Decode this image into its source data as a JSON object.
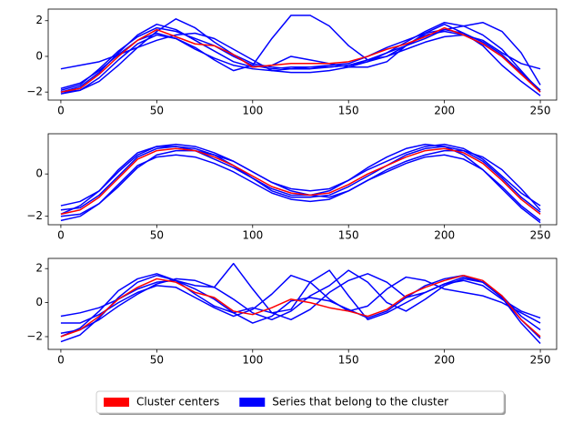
{
  "chart_data": [
    {
      "type": "line",
      "x": [
        0,
        10,
        20,
        30,
        40,
        50,
        60,
        70,
        80,
        90,
        100,
        110,
        120,
        130,
        140,
        150,
        160,
        170,
        180,
        190,
        200,
        210,
        220,
        230,
        240,
        250
      ],
      "xlim": [
        -6.6,
        258.5
      ],
      "xticks": [
        0,
        50,
        100,
        150,
        200,
        250
      ],
      "ylim": [
        -2.45,
        2.65
      ],
      "yticks": [
        {
          "value": -2,
          "label": "−2"
        },
        0,
        2
      ],
      "series": [
        {
          "color": "blue",
          "values": [
            -1.9,
            -1.6,
            -0.7,
            0.3,
            1.1,
            1.6,
            1.4,
            1,
            0.6,
            0,
            -0.5,
            -0.7,
            -0.6,
            -0.6,
            -0.5,
            -0.4,
            0,
            0.5,
            0.9,
            1.3,
            1.5,
            1.3,
            0.8,
            0.1,
            -0.9,
            -1.9
          ]
        },
        {
          "color": "blue",
          "values": [
            -2,
            -1.9,
            -1.4,
            -0.5,
            0.5,
            1.4,
            2.1,
            1.6,
            0.8,
            0.1,
            -0.4,
            -0.6,
            -0.7,
            -0.6,
            -0.6,
            -0.5,
            -0.3,
            0.2,
            0.8,
            1.4,
            1.9,
            1.7,
            1.2,
            0.4,
            -0.8,
            -2
          ]
        },
        {
          "color": "blue",
          "values": [
            -1.8,
            -1.5,
            -0.8,
            0.1,
            0.9,
            1.3,
            1,
            0.5,
            -0.2,
            -0.8,
            -0.5,
            1,
            2.3,
            2.3,
            1.7,
            0.6,
            -0.2,
            0,
            0.6,
            1.2,
            1.4,
            1.2,
            0.7,
            0,
            -1,
            -1.9
          ]
        },
        {
          "color": "blue",
          "values": [
            -0.7,
            -0.5,
            -0.3,
            0.1,
            0.5,
            0.9,
            1.2,
            1.3,
            1,
            0.4,
            -0.2,
            -0.8,
            -0.9,
            -0.9,
            -0.8,
            -0.6,
            -0.3,
            0,
            0.4,
            0.8,
            1.1,
            1.2,
            0.9,
            0.2,
            -0.4,
            -0.7
          ]
        },
        {
          "color": "blue",
          "values": [
            -2.1,
            -1.9,
            -1.2,
            -0.2,
            0.7,
            1.2,
            1,
            0.4,
            -0.1,
            -0.5,
            -0.7,
            -0.8,
            -0.7,
            -0.7,
            -0.6,
            -0.5,
            -0.2,
            0.2,
            0.6,
            1,
            1.5,
            1.7,
            1.9,
            1.4,
            0.2,
            -1.6
          ]
        },
        {
          "color": "blue",
          "values": [
            -2,
            -1.7,
            -0.9,
            0.2,
            1.2,
            1.8,
            1.5,
            0.9,
            0.3,
            -0.3,
            -0.6,
            -0.5,
            0,
            -0.2,
            -0.4,
            -0.6,
            -0.6,
            -0.3,
            0.6,
            1.3,
            1.8,
            1.3,
            0.6,
            -0.5,
            -1.4,
            -2.2
          ]
        },
        {
          "color": "red",
          "values": [
            -2,
            -1.8,
            -1,
            0,
            0.9,
            1.5,
            1.1,
            0.7,
            0.6,
            0.1,
            -0.6,
            -0.5,
            -0.4,
            -0.4,
            -0.4,
            -0.3,
            0,
            0.4,
            0.7,
            1.1,
            1.6,
            1.2,
            0.7,
            0,
            -1,
            -2
          ]
        }
      ]
    },
    {
      "type": "line",
      "x": [
        0,
        10,
        20,
        30,
        40,
        50,
        60,
        70,
        80,
        90,
        100,
        110,
        120,
        130,
        140,
        150,
        160,
        170,
        180,
        190,
        200,
        210,
        220,
        230,
        240,
        250
      ],
      "xlim": [
        -6.6,
        258.5
      ],
      "xticks": [
        0,
        50,
        100,
        150,
        200,
        250
      ],
      "ylim": [
        -2.4,
        1.9
      ],
      "yticks": [
        {
          "value": -2,
          "label": "−2"
        },
        0
      ],
      "series": [
        {
          "color": "blue",
          "values": [
            -1.5,
            -1.3,
            -0.8,
            0.1,
            0.9,
            1.3,
            1.4,
            1.3,
            1,
            0.6,
            0.1,
            -0.4,
            -0.7,
            -0.8,
            -0.7,
            -0.3,
            0.2,
            0.6,
            1,
            1.3,
            1.4,
            1.2,
            0.7,
            -0.1,
            -0.9,
            -1.5
          ]
        },
        {
          "color": "blue",
          "values": [
            -2.2,
            -2,
            -1.4,
            -0.5,
            0.4,
            0.8,
            0.9,
            0.8,
            0.5,
            0.1,
            -0.4,
            -0.9,
            -1.2,
            -1.3,
            -1.2,
            -0.8,
            -0.3,
            0.1,
            0.5,
            0.8,
            0.9,
            0.7,
            0.2,
            -0.6,
            -1.5,
            -2.2
          ]
        },
        {
          "color": "blue",
          "values": [
            -1.9,
            -1.5,
            -0.8,
            0.2,
            1,
            1.3,
            1.3,
            1.1,
            0.7,
            0.3,
            -0.2,
            -0.7,
            -1,
            -1,
            -0.8,
            -0.3,
            0.3,
            0.8,
            1.2,
            1.4,
            1.3,
            0.9,
            0.2,
            -0.7,
            -1.6,
            -2.3
          ]
        },
        {
          "color": "blue",
          "values": [
            -2,
            -1.9,
            -1.4,
            -0.6,
            0.3,
            0.9,
            1.1,
            1.1,
            0.9,
            0.6,
            0.1,
            -0.4,
            -0.8,
            -1,
            -1.1,
            -0.8,
            -0.3,
            0.2,
            0.6,
            0.9,
            1.1,
            1.1,
            0.8,
            0.2,
            -0.7,
            -1.7
          ]
        },
        {
          "color": "blue",
          "values": [
            -1.7,
            -1.6,
            -1,
            -0.1,
            0.8,
            1.2,
            1.3,
            1.2,
            0.9,
            0.4,
            -0.2,
            -0.8,
            -1.1,
            -1.1,
            -1,
            -0.6,
            -0.1,
            0.4,
            0.9,
            1.2,
            1.3,
            1.1,
            0.6,
            -0.2,
            -1.1,
            -1.8
          ]
        },
        {
          "color": "red",
          "values": [
            -1.9,
            -1.7,
            -1.1,
            -0.2,
            0.7,
            1.1,
            1.2,
            1.1,
            0.8,
            0.4,
            -0.1,
            -0.6,
            -0.9,
            -1,
            -0.9,
            -0.5,
            0,
            0.4,
            0.8,
            1.1,
            1.2,
            1,
            0.5,
            -0.3,
            -1.2,
            -1.9
          ]
        }
      ]
    },
    {
      "type": "line",
      "x": [
        0,
        10,
        20,
        30,
        40,
        50,
        60,
        70,
        80,
        90,
        100,
        110,
        120,
        130,
        140,
        150,
        160,
        170,
        180,
        190,
        200,
        210,
        220,
        230,
        240,
        250
      ],
      "xlim": [
        -6.6,
        258.5
      ],
      "xticks": [
        0,
        50,
        100,
        150,
        200,
        250
      ],
      "ylim": [
        -2.75,
        2.6
      ],
      "yticks": [
        {
          "value": -2,
          "label": "−2"
        },
        0,
        2
      ],
      "series": [
        {
          "color": "blue",
          "values": [
            -2.3,
            -1.9,
            -0.9,
            0.3,
            1.2,
            1.6,
            1.3,
            0.8,
            0.2,
            -0.6,
            -1.2,
            -0.8,
            0.1,
            0.3,
            0.1,
            -0.4,
            -0.9,
            -0.5,
            0.3,
            1,
            1.4,
            1.6,
            1.2,
            0.3,
            -1.2,
            -2.4
          ]
        },
        {
          "color": "blue",
          "values": [
            -0.8,
            -0.6,
            -0.3,
            0.2,
            0.8,
            1.2,
            1.3,
            1,
            0.9,
            2.3,
            0.8,
            -0.6,
            -0.4,
            1.2,
            1.9,
            0.4,
            -1,
            -0.6,
            0,
            0.6,
            1.1,
            1.3,
            1,
            0.2,
            -0.5,
            -0.9
          ]
        },
        {
          "color": "blue",
          "values": [
            -1.2,
            -1.2,
            -0.7,
            0,
            0.6,
            1,
            0.9,
            0.3,
            -0.3,
            -0.8,
            -0.4,
            0.5,
            1.6,
            1.2,
            0.2,
            -0.5,
            -0.2,
            0.8,
            1.5,
            1.3,
            0.8,
            0.6,
            0.4,
            0,
            -0.6,
            -1.2
          ]
        },
        {
          "color": "blue",
          "values": [
            -2,
            -1.5,
            -0.5,
            0.7,
            1.4,
            1.7,
            1.3,
            0.5,
            -0.2,
            -0.6,
            -0.3,
            -0.6,
            -1,
            -0.4,
            0.6,
            1.3,
            1.7,
            1.2,
            0.3,
            0.6,
            1.1,
            1.5,
            1.2,
            0.3,
            -1,
            -2.1
          ]
        },
        {
          "color": "blue",
          "values": [
            -1.8,
            -1.6,
            -1,
            -0.2,
            0.5,
            1.1,
            1.4,
            1.3,
            0.9,
            0.2,
            -0.6,
            -1,
            -0.5,
            0.4,
            1,
            1.9,
            1.2,
            0,
            -0.5,
            0.2,
            1,
            1.4,
            1.2,
            0.4,
            -0.8,
            -1.6
          ]
        },
        {
          "color": "red",
          "values": [
            -2,
            -1.6,
            -0.8,
            0.2,
            0.9,
            1.4,
            1.2,
            0.6,
            0.3,
            -0.5,
            -0.7,
            -0.3,
            0.2,
            0,
            -0.3,
            -0.5,
            -0.8,
            -0.4,
            0.4,
            0.9,
            1.3,
            1.6,
            1.3,
            0.4,
            -1,
            -2
          ]
        }
      ]
    }
  ],
  "legend": [
    {
      "label": "Cluster centers",
      "color": "red"
    },
    {
      "label": "Series that belong to the cluster",
      "color": "blue"
    }
  ]
}
